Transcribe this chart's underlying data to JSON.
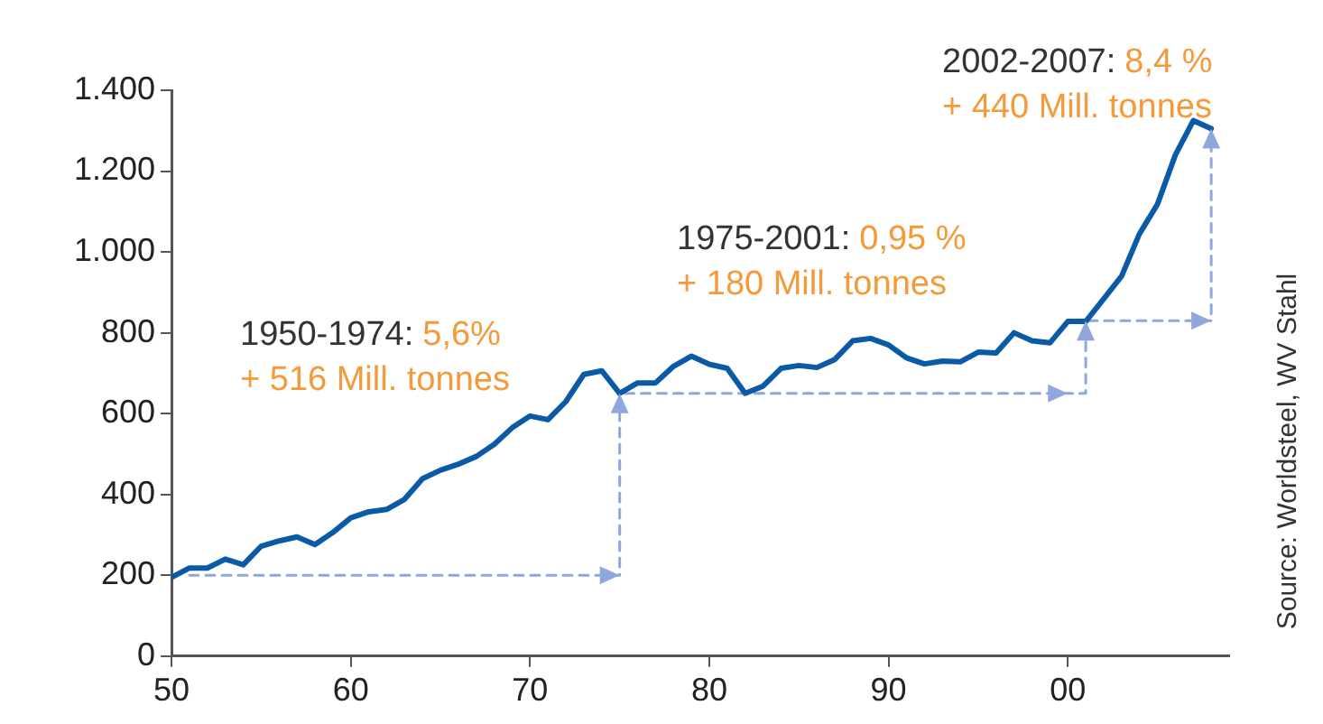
{
  "chart_data": {
    "type": "line",
    "x": [
      1950,
      1951,
      1952,
      1953,
      1954,
      1955,
      1956,
      1957,
      1958,
      1959,
      1960,
      1961,
      1962,
      1963,
      1964,
      1965,
      1966,
      1967,
      1968,
      1969,
      1970,
      1971,
      1972,
      1973,
      1974,
      1975,
      1976,
      1977,
      1978,
      1979,
      1980,
      1981,
      1982,
      1983,
      1984,
      1985,
      1986,
      1987,
      1988,
      1989,
      1990,
      1991,
      1992,
      1993,
      1994,
      1995,
      1996,
      1997,
      1998,
      1999,
      2000,
      2001,
      2002,
      2003,
      2004,
      2005,
      2006,
      2007,
      2008
    ],
    "series": [
      {
        "color": "#0b5aa6",
        "values": [
          195,
          218,
          218,
          240,
          226,
          272,
          285,
          295,
          276,
          306,
          342,
          357,
          363,
          388,
          439,
          460,
          475,
          494,
          524,
          565,
          594,
          585,
          630,
          697,
          706,
          650,
          676,
          676,
          717,
          742,
          722,
          712,
          650,
          668,
          712,
          719,
          714,
          734,
          780,
          786,
          770,
          738,
          723,
          730,
          728,
          752,
          750,
          800,
          780,
          775,
          828,
          828,
          884,
          940,
          1045,
          1118,
          1240,
          1325,
          1305
        ]
      },
      {
        "type": "line",
        "line_style": "dashed",
        "color": "#8fa7dc",
        "x": [
          1951,
          1975,
          1975,
          2000,
          2001,
          2001,
          2008,
          2008
        ],
        "values": [
          200,
          200,
          650,
          650,
          650,
          830,
          830,
          1305
        ]
      }
    ],
    "xlim": [
      1950,
      2009
    ],
    "xticks": [
      {
        "value": 1950,
        "label": "50"
      },
      {
        "value": 1960,
        "label": "60"
      },
      {
        "value": 1970,
        "label": "70"
      },
      {
        "value": 1980,
        "label": "80"
      },
      {
        "value": 1990,
        "label": "90"
      },
      {
        "value": 2000,
        "label": "00"
      }
    ],
    "ylim": [
      0,
      1400
    ],
    "yticks": [
      0,
      200,
      400,
      600,
      800,
      {
        "value": 1000,
        "label": "1.000"
      },
      {
        "value": 1200,
        "label": "1.200"
      },
      {
        "value": 1400,
        "label": "1.400"
      }
    ],
    "grid": false,
    "legend": false,
    "marker": "none",
    "line_style": "solid",
    "annotations": [
      "1950-1974:",
      "5,6%",
      "+ 516 Mill. tonnes",
      "1975-2001:",
      "0,95 %",
      "+ 180 Mill. tonnes",
      "2002-2007:",
      "8,4 %",
      "+ 440 Mill. tonnes",
      "Source: Worldsteel, WV Stahl"
    ]
  }
}
